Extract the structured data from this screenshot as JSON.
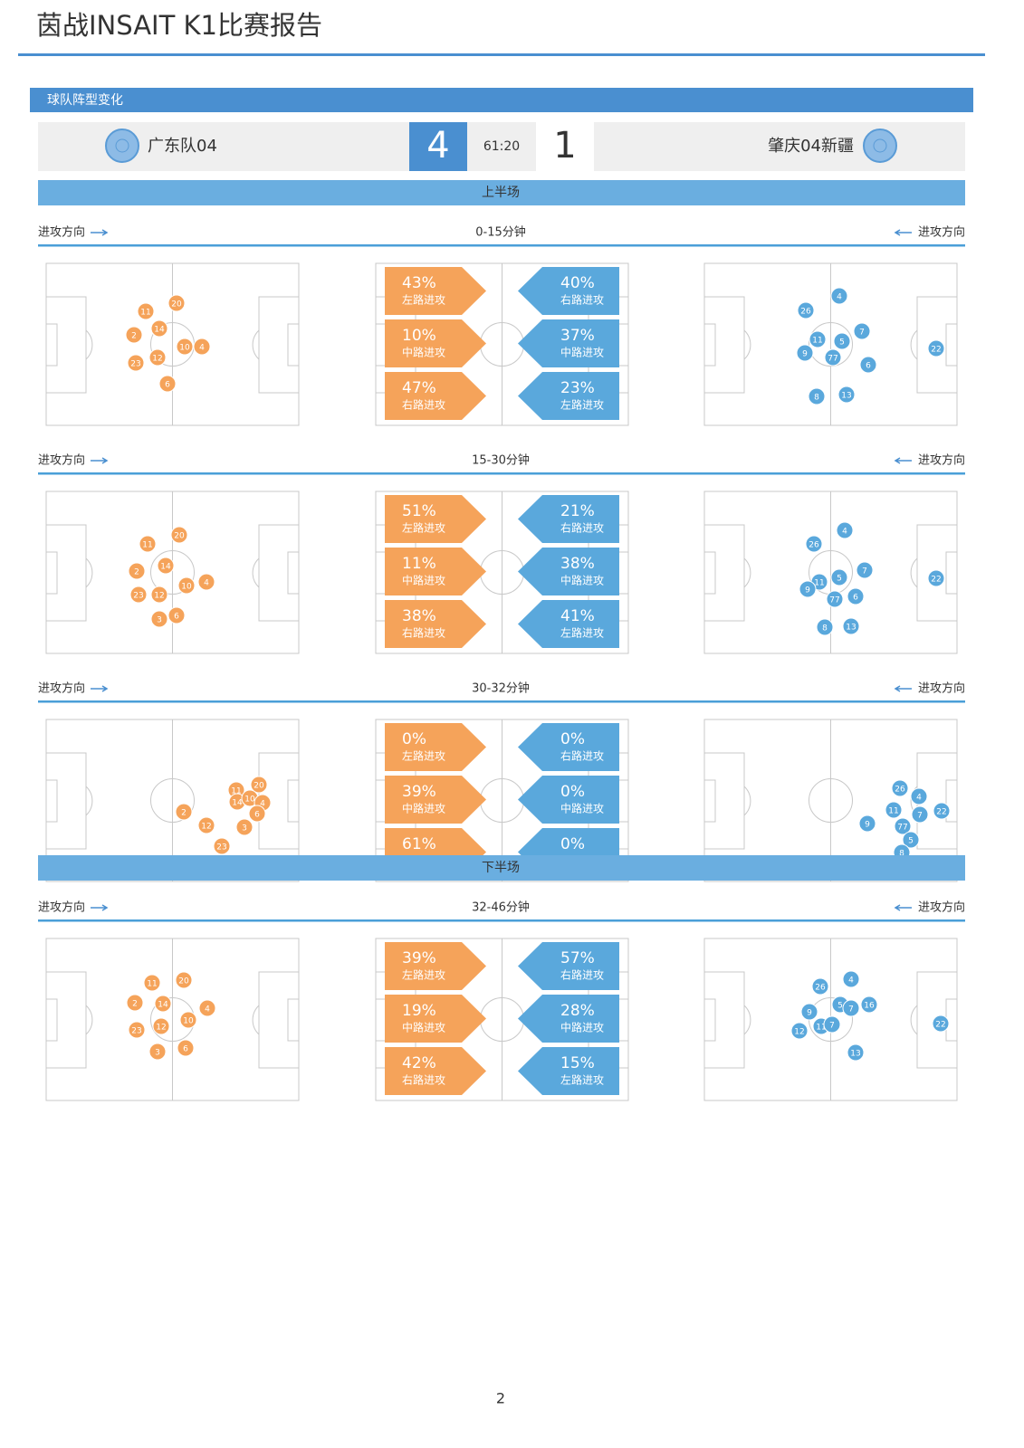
{
  "header": {
    "title": "茵战INSAIT K1比赛报告"
  },
  "section": {
    "title": "球队阵型变化"
  },
  "match": {
    "home_team": "广东队04",
    "away_team": "肇庆04新疆",
    "home_score": "4",
    "away_score": "1",
    "time": "61:20"
  },
  "direction_label": "进攻方向",
  "halves": [
    {
      "label": "上半场",
      "periods": [
        {
          "label": "0-15分钟",
          "home_players": [
            "20",
            "11",
            "14",
            "2",
            "10",
            "4",
            "23",
            "12",
            "6"
          ],
          "away_players": [
            "4",
            "26",
            "7",
            "11",
            "5",
            "9",
            "77",
            "22",
            "6",
            "8",
            "13"
          ],
          "home_stats": [
            {
              "pct": "43%",
              "label": "左路进攻"
            },
            {
              "pct": "10%",
              "label": "中路进攻"
            },
            {
              "pct": "47%",
              "label": "右路进攻"
            }
          ],
          "away_stats": [
            {
              "pct": "40%",
              "label": "右路进攻"
            },
            {
              "pct": "37%",
              "label": "中路进攻"
            },
            {
              "pct": "23%",
              "label": "左路进攻"
            }
          ]
        },
        {
          "label": "15-30分钟",
          "home_players": [
            "20",
            "11",
            "14",
            "2",
            "10",
            "4",
            "23",
            "12",
            "3",
            "6"
          ],
          "away_players": [
            "4",
            "26",
            "7",
            "5",
            "11",
            "9",
            "77",
            "6",
            "22",
            "8",
            "13"
          ],
          "home_stats": [
            {
              "pct": "51%",
              "label": "左路进攻"
            },
            {
              "pct": "11%",
              "label": "中路进攻"
            },
            {
              "pct": "38%",
              "label": "右路进攻"
            }
          ],
          "away_stats": [
            {
              "pct": "21%",
              "label": "右路进攻"
            },
            {
              "pct": "38%",
              "label": "中路进攻"
            },
            {
              "pct": "41%",
              "label": "左路进攻"
            }
          ]
        },
        {
          "label": "30-32分钟",
          "home_players": [
            "11",
            "20",
            "14",
            "10",
            "4",
            "6",
            "2",
            "12",
            "3",
            "23"
          ],
          "away_players": [
            "26",
            "4",
            "11",
            "7",
            "22",
            "9",
            "77",
            "5",
            "8"
          ],
          "home_stats": [
            {
              "pct": "0%",
              "label": "左路进攻"
            },
            {
              "pct": "39%",
              "label": "中路进攻"
            },
            {
              "pct": "61%",
              "label": "右路进攻"
            }
          ],
          "away_stats": [
            {
              "pct": "0%",
              "label": "右路进攻"
            },
            {
              "pct": "0%",
              "label": "中路进攻"
            },
            {
              "pct": "0%",
              "label": "左路进攻"
            }
          ]
        }
      ]
    },
    {
      "label": "下半场",
      "periods": [
        {
          "label": "32-46分钟",
          "home_players": [
            "11",
            "20",
            "2",
            "14",
            "4",
            "10",
            "23",
            "12",
            "3",
            "6"
          ],
          "away_players": [
            "4",
            "26",
            "5",
            "7",
            "16",
            "9",
            "11",
            "7",
            "12",
            "22",
            "13"
          ],
          "home_stats": [
            {
              "pct": "39%",
              "label": "左路进攻"
            },
            {
              "pct": "19%",
              "label": "中路进攻"
            },
            {
              "pct": "42%",
              "label": "右路进攻"
            }
          ],
          "away_stats": [
            {
              "pct": "57%",
              "label": "右路进攻"
            },
            {
              "pct": "28%",
              "label": "中路进攻"
            },
            {
              "pct": "15%",
              "label": "左路进攻"
            }
          ]
        }
      ]
    }
  ],
  "footer": {
    "page": "2"
  }
}
